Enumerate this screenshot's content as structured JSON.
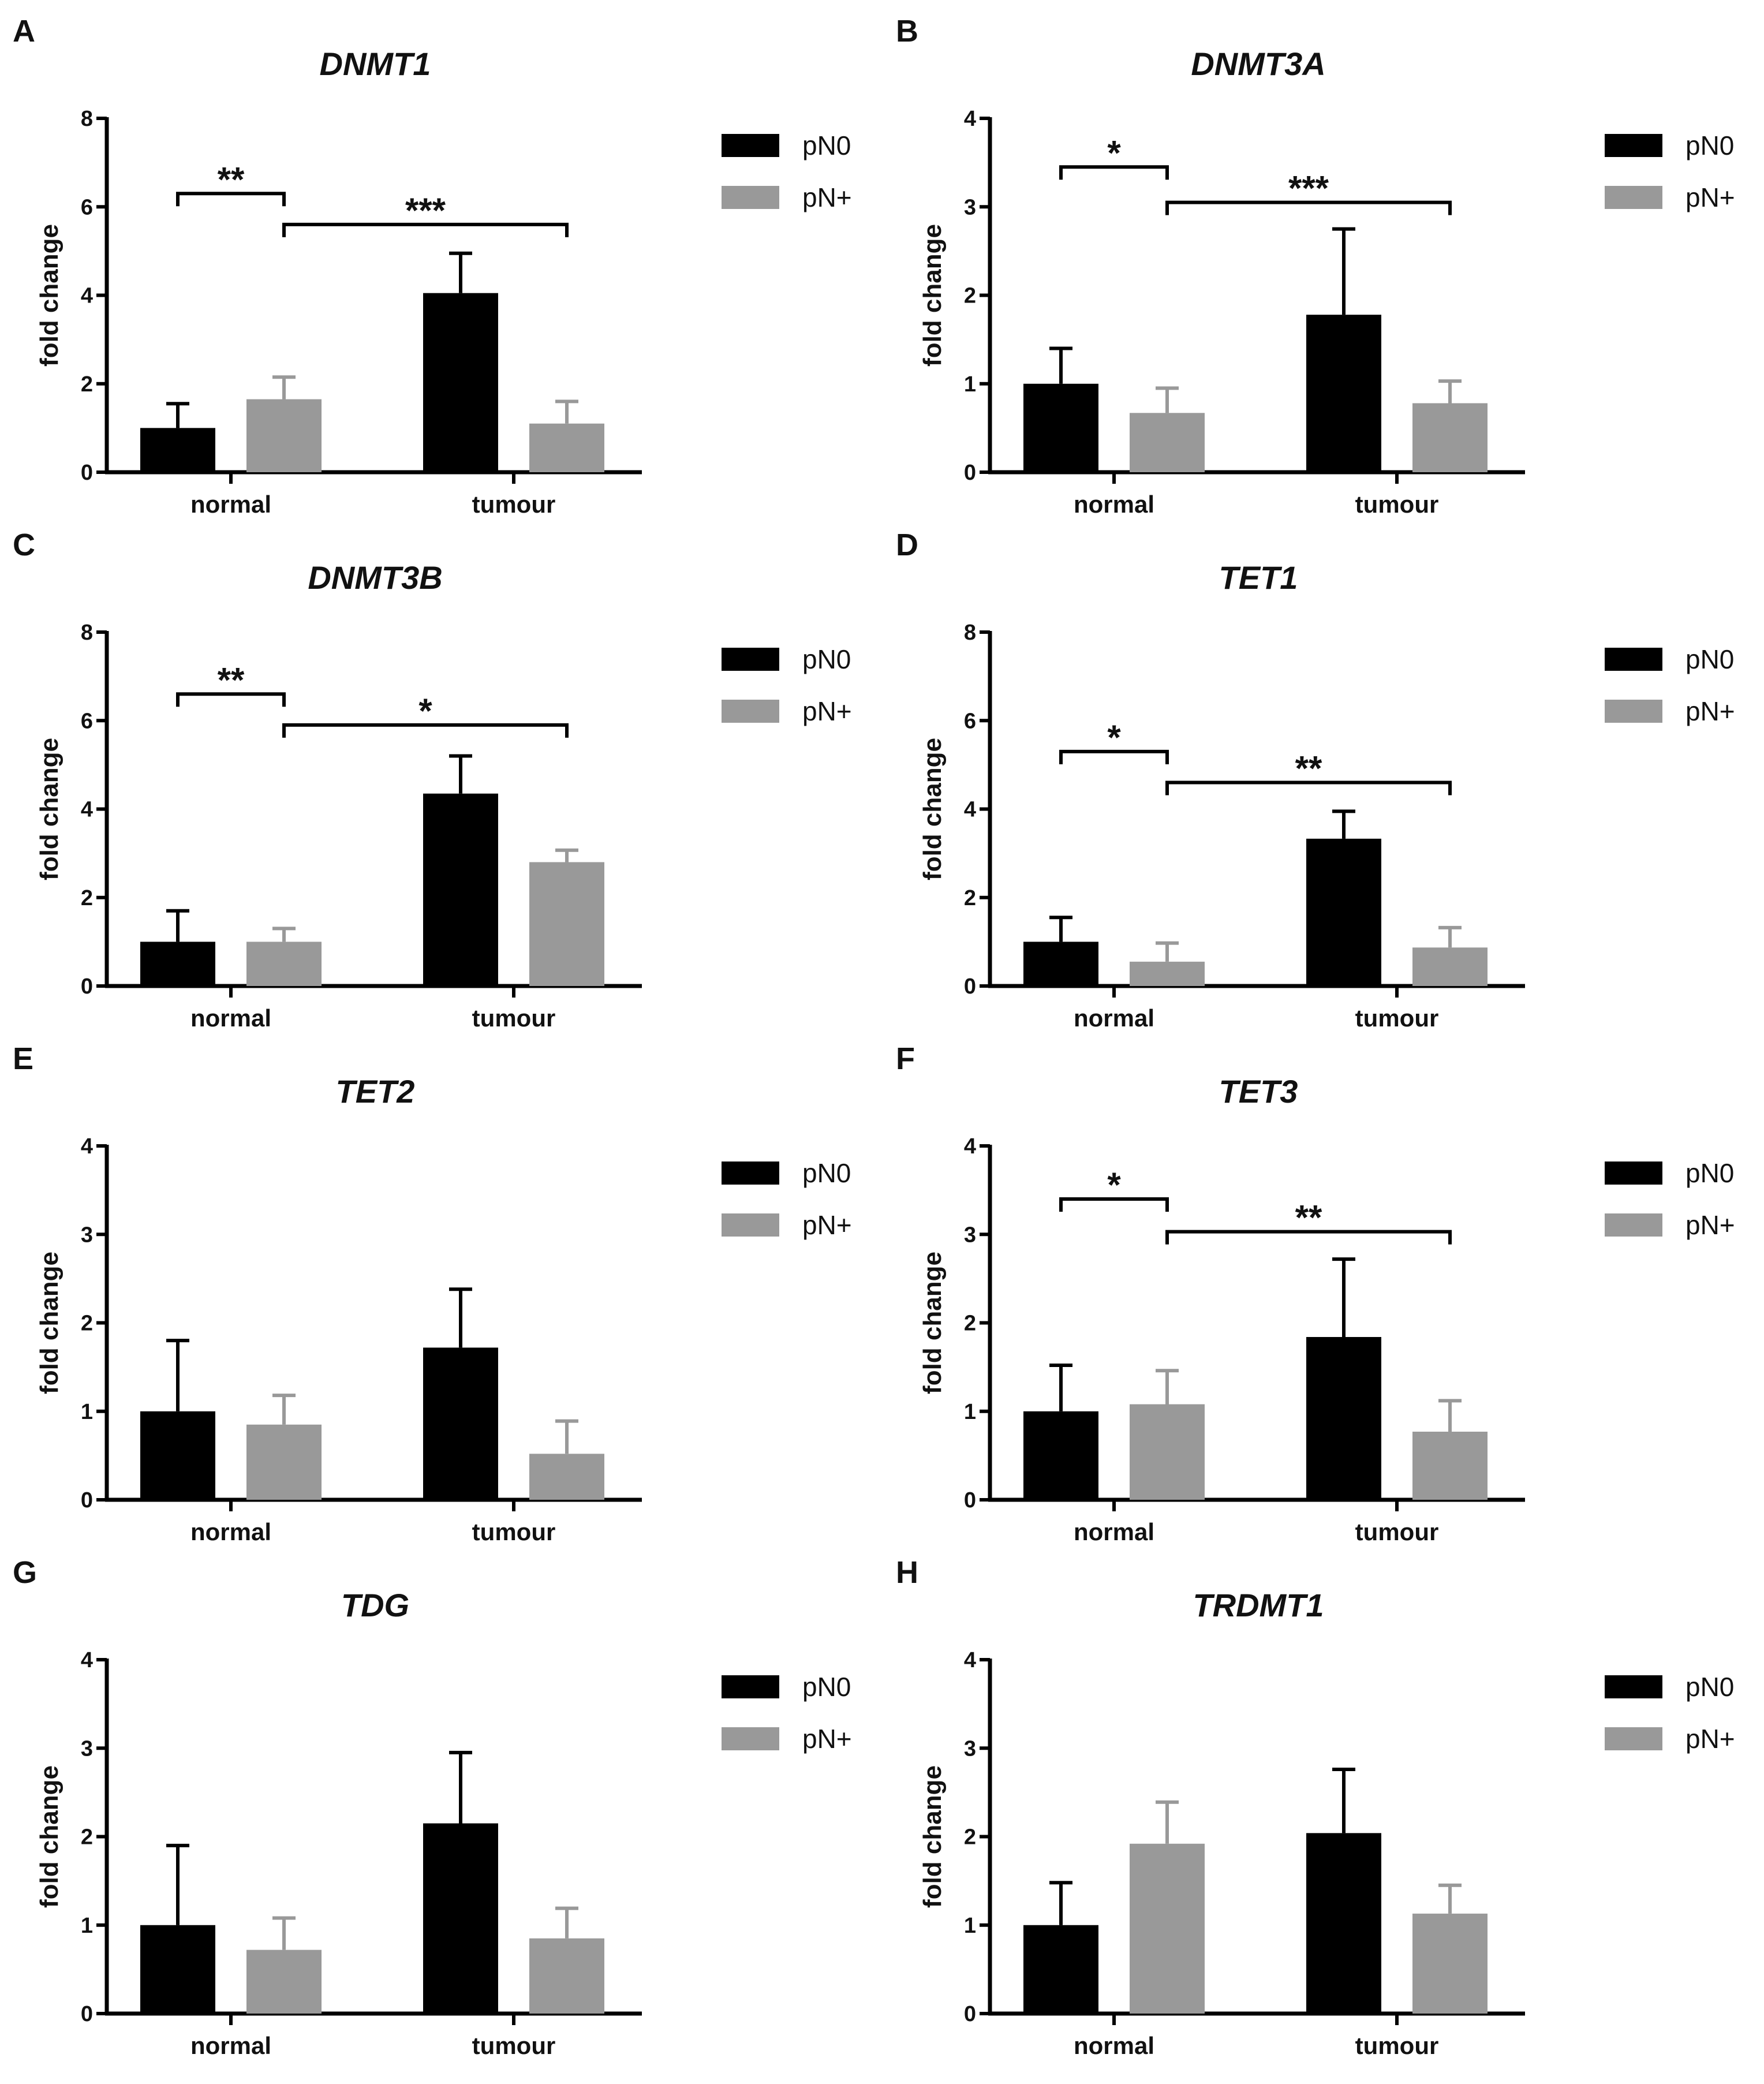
{
  "figure": {
    "series_names": [
      "pN0",
      "pN+"
    ],
    "series_colors": [
      "#000000",
      "#999999"
    ],
    "axis_color": "#000000"
  },
  "chart_data": [
    {
      "panel": "A",
      "title": "DNMT1",
      "type": "bar",
      "categories": [
        "normal",
        "tumour"
      ],
      "ylabel": "fold change",
      "ylim": [
        0,
        8
      ],
      "yticks": [
        0,
        2,
        4,
        6,
        8
      ],
      "series": [
        {
          "name": "pN0",
          "values": [
            1.0,
            4.05
          ],
          "errors": [
            0.55,
            0.9
          ]
        },
        {
          "name": "pN+",
          "values": [
            1.65,
            1.1
          ],
          "errors": [
            0.5,
            0.5
          ]
        }
      ],
      "significance": [
        {
          "label": "**",
          "from_bar": [
            0,
            0
          ],
          "to_bar": [
            0,
            1
          ],
          "level": 6.3
        },
        {
          "label": "***",
          "from_bar": [
            0,
            1
          ],
          "to_bar": [
            1,
            1
          ],
          "level": 5.6
        }
      ]
    },
    {
      "panel": "B",
      "title": "DNMT3A",
      "type": "bar",
      "categories": [
        "normal",
        "tumour"
      ],
      "ylabel": "fold change",
      "ylim": [
        0,
        4
      ],
      "yticks": [
        0,
        1,
        2,
        3,
        4
      ],
      "series": [
        {
          "name": "pN0",
          "values": [
            1.0,
            1.78
          ],
          "errors": [
            0.4,
            0.97
          ]
        },
        {
          "name": "pN+",
          "values": [
            0.67,
            0.78
          ],
          "errors": [
            0.28,
            0.25
          ]
        }
      ],
      "significance": [
        {
          "label": "*",
          "from_bar": [
            0,
            0
          ],
          "to_bar": [
            0,
            1
          ],
          "level": 3.45
        },
        {
          "label": "***",
          "from_bar": [
            0,
            1
          ],
          "to_bar": [
            1,
            1
          ],
          "level": 3.05
        }
      ]
    },
    {
      "panel": "C",
      "title": "DNMT3B",
      "type": "bar",
      "categories": [
        "normal",
        "tumour"
      ],
      "ylabel": "fold change",
      "ylim": [
        0,
        8
      ],
      "yticks": [
        0,
        2,
        4,
        6,
        8
      ],
      "series": [
        {
          "name": "pN0",
          "values": [
            1.0,
            4.35
          ],
          "errors": [
            0.7,
            0.85
          ]
        },
        {
          "name": "pN+",
          "values": [
            1.0,
            2.8
          ],
          "errors": [
            0.3,
            0.27
          ]
        }
      ],
      "significance": [
        {
          "label": "**",
          "from_bar": [
            0,
            0
          ],
          "to_bar": [
            0,
            1
          ],
          "level": 6.6
        },
        {
          "label": "*",
          "from_bar": [
            0,
            1
          ],
          "to_bar": [
            1,
            1
          ],
          "level": 5.9
        }
      ]
    },
    {
      "panel": "D",
      "title": "TET1",
      "type": "bar",
      "categories": [
        "normal",
        "tumour"
      ],
      "ylabel": "fold change",
      "ylim": [
        0,
        8
      ],
      "yticks": [
        0,
        2,
        4,
        6,
        8
      ],
      "series": [
        {
          "name": "pN0",
          "values": [
            1.0,
            3.33
          ],
          "errors": [
            0.55,
            0.62
          ]
        },
        {
          "name": "pN+",
          "values": [
            0.55,
            0.87
          ],
          "errors": [
            0.42,
            0.45
          ]
        }
      ],
      "significance": [
        {
          "label": "*",
          "from_bar": [
            0,
            0
          ],
          "to_bar": [
            0,
            1
          ],
          "level": 5.3
        },
        {
          "label": "**",
          "from_bar": [
            0,
            1
          ],
          "to_bar": [
            1,
            1
          ],
          "level": 4.6
        }
      ]
    },
    {
      "panel": "E",
      "title": "TET2",
      "type": "bar",
      "categories": [
        "normal",
        "tumour"
      ],
      "ylabel": "fold change",
      "ylim": [
        0,
        4
      ],
      "yticks": [
        0,
        1,
        2,
        3,
        4
      ],
      "series": [
        {
          "name": "pN0",
          "values": [
            1.0,
            1.72
          ],
          "errors": [
            0.8,
            0.66
          ]
        },
        {
          "name": "pN+",
          "values": [
            0.85,
            0.52
          ],
          "errors": [
            0.33,
            0.37
          ]
        }
      ],
      "significance": []
    },
    {
      "panel": "F",
      "title": "TET3",
      "type": "bar",
      "categories": [
        "normal",
        "tumour"
      ],
      "ylabel": "fold change",
      "ylim": [
        0,
        4
      ],
      "yticks": [
        0,
        1,
        2,
        3,
        4
      ],
      "series": [
        {
          "name": "pN0",
          "values": [
            1.0,
            1.84
          ],
          "errors": [
            0.52,
            0.88
          ]
        },
        {
          "name": "pN+",
          "values": [
            1.08,
            0.77
          ],
          "errors": [
            0.38,
            0.35
          ]
        }
      ],
      "significance": [
        {
          "label": "*",
          "from_bar": [
            0,
            0
          ],
          "to_bar": [
            0,
            1
          ],
          "level": 3.4
        },
        {
          "label": "**",
          "from_bar": [
            0,
            1
          ],
          "to_bar": [
            1,
            1
          ],
          "level": 3.03
        }
      ]
    },
    {
      "panel": "G",
      "title": "TDG",
      "type": "bar",
      "categories": [
        "normal",
        "tumour"
      ],
      "ylabel": "fold change",
      "ylim": [
        0,
        4
      ],
      "yticks": [
        0,
        1,
        2,
        3,
        4
      ],
      "series": [
        {
          "name": "pN0",
          "values": [
            1.0,
            2.15
          ],
          "errors": [
            0.9,
            0.8
          ]
        },
        {
          "name": "pN+",
          "values": [
            0.72,
            0.85
          ],
          "errors": [
            0.36,
            0.34
          ]
        }
      ],
      "significance": []
    },
    {
      "panel": "H",
      "title": "TRDMT1",
      "type": "bar",
      "categories": [
        "normal",
        "tumour"
      ],
      "ylabel": "fold change",
      "ylim": [
        0,
        4
      ],
      "yticks": [
        0,
        1,
        2,
        3,
        4
      ],
      "series": [
        {
          "name": "pN0",
          "values": [
            1.0,
            2.04
          ],
          "errors": [
            0.48,
            0.72
          ]
        },
        {
          "name": "pN+",
          "values": [
            1.92,
            1.13
          ],
          "errors": [
            0.47,
            0.32
          ]
        }
      ],
      "significance": []
    }
  ]
}
